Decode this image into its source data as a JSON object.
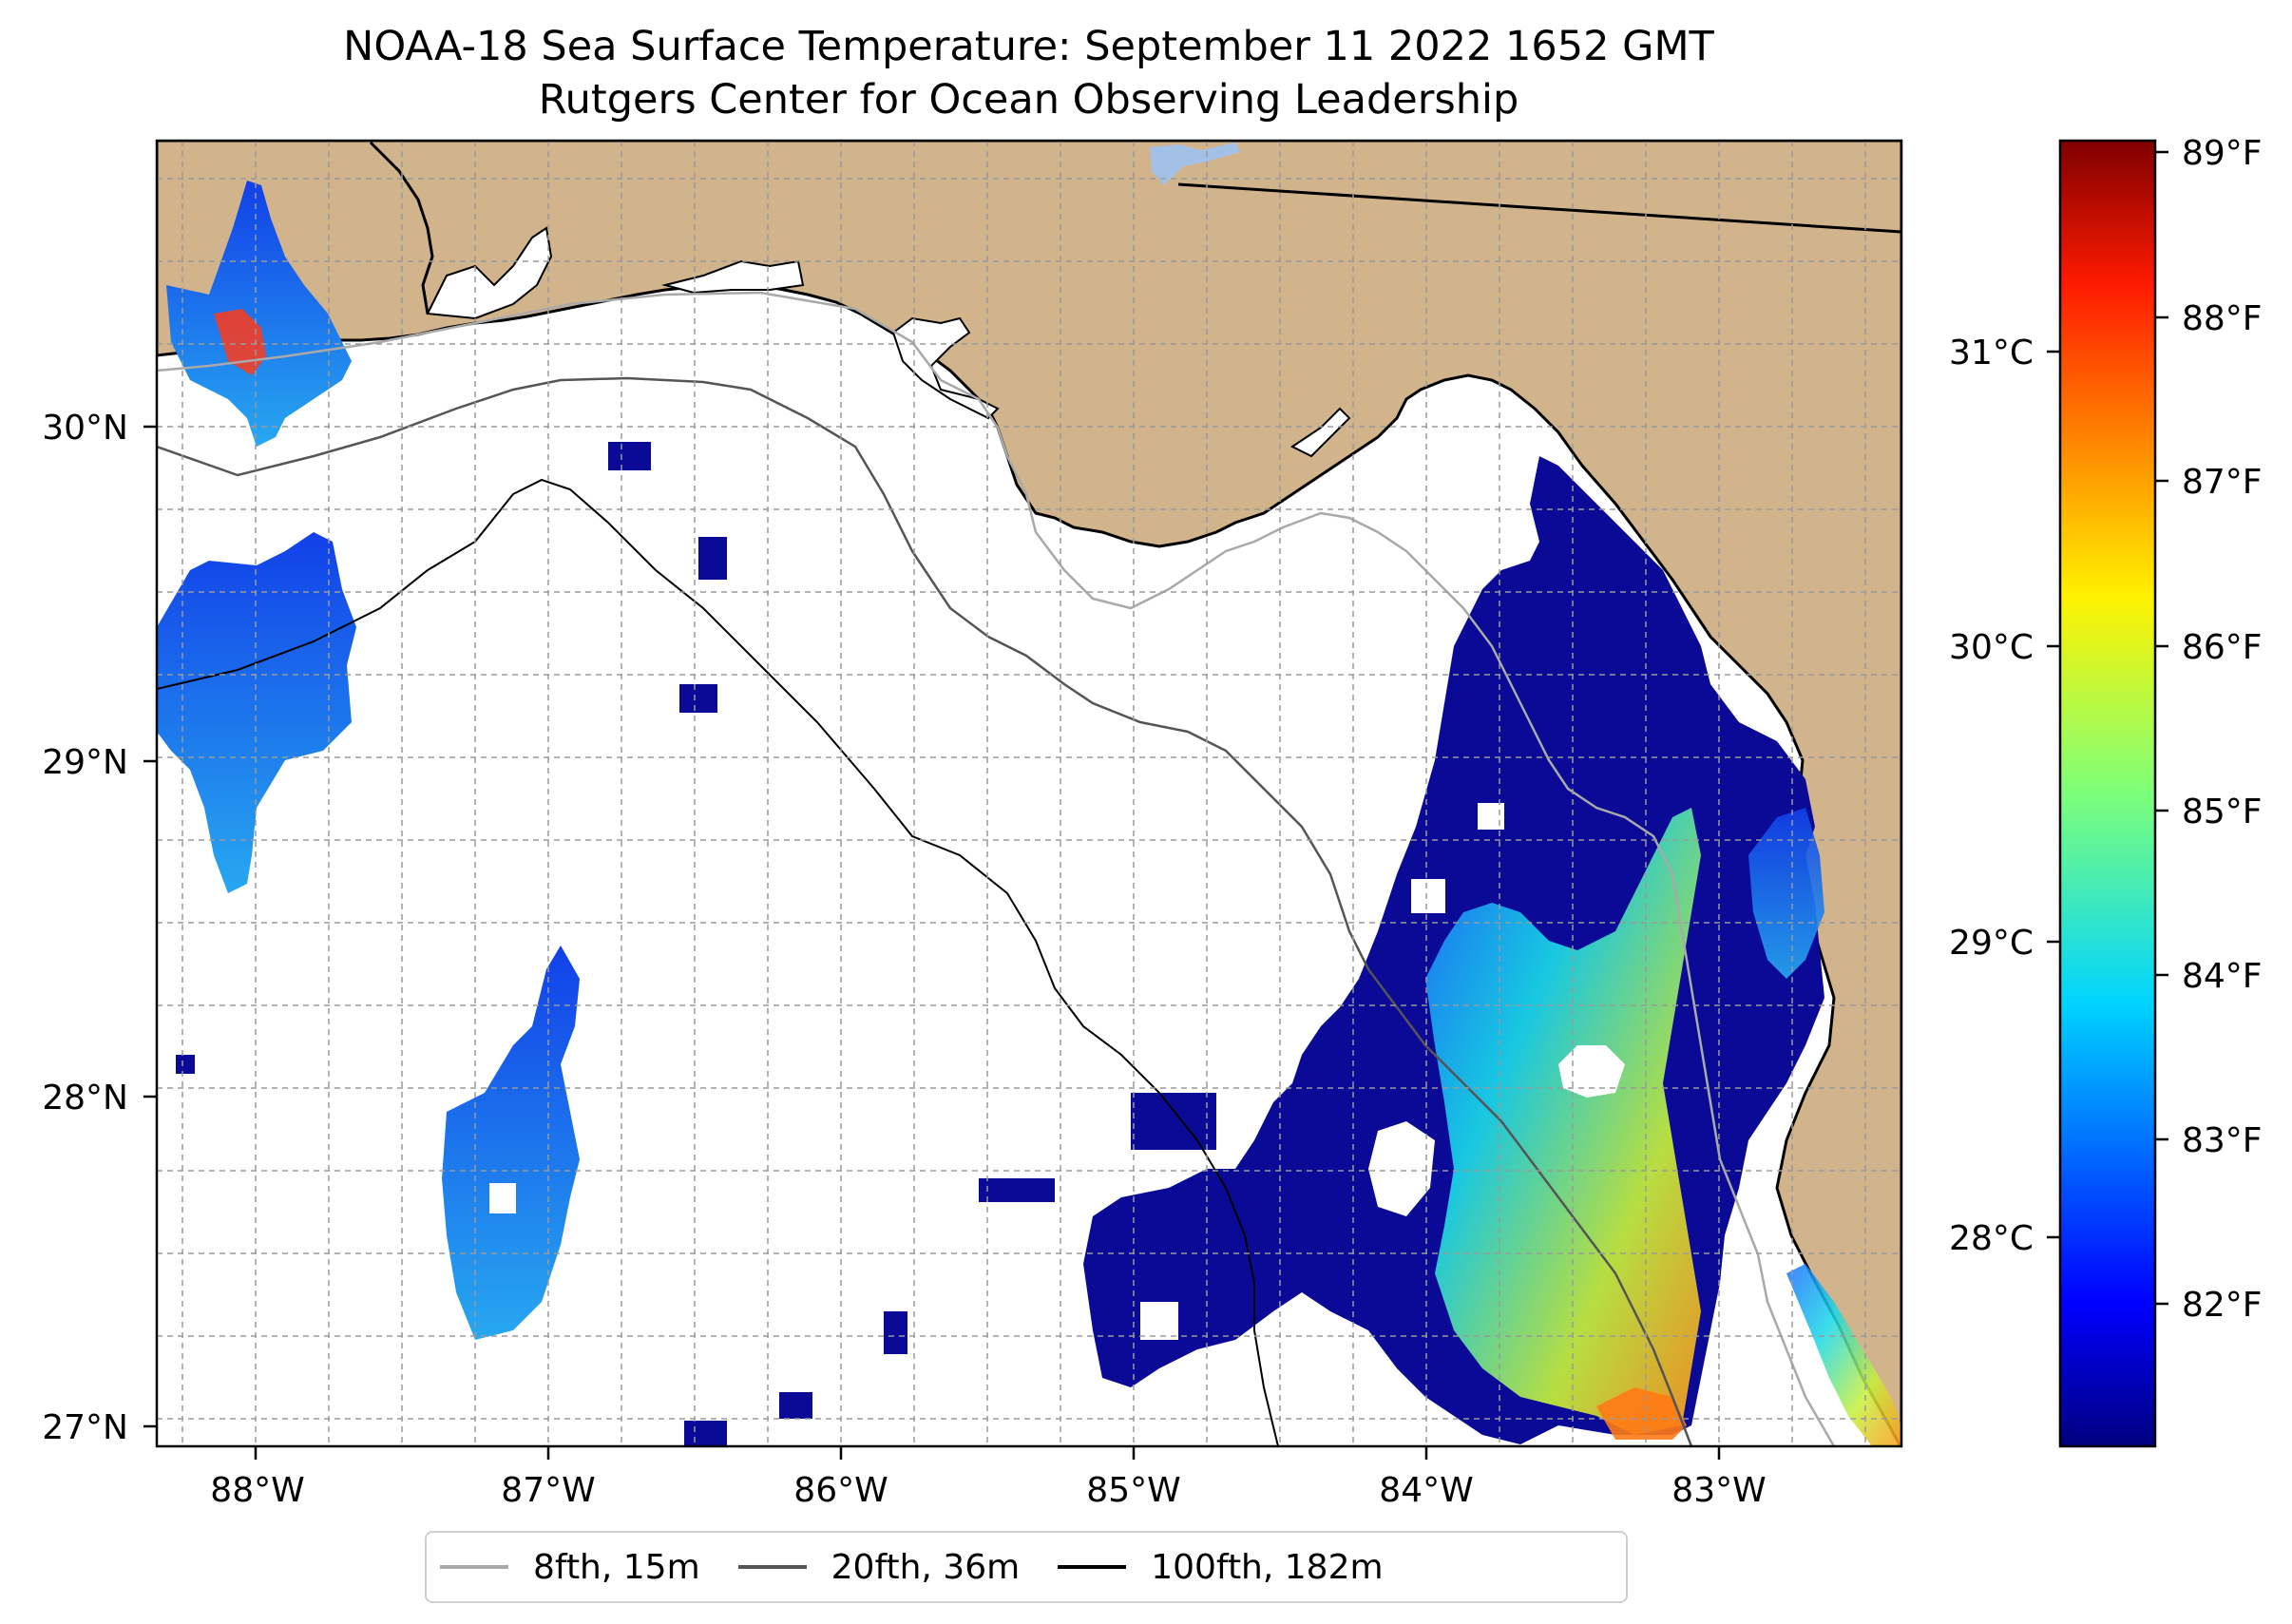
{
  "title": "NOAA-18 Sea Surface Temperature: September 11 2022 1652 GMT",
  "subtitle": "Rutgers Center for Ocean Observing Leadership",
  "map": {
    "lon_ticks": [
      "88°W",
      "87°W",
      "86°W",
      "85°W",
      "84°W",
      "83°W"
    ],
    "lat_ticks": [
      "30°N",
      "29°N",
      "28°N",
      "27°N"
    ],
    "lon_range": [
      -88.3,
      -82.35
    ],
    "lat_range": [
      26.93,
      30.85
    ],
    "land_color": "#d2b48c",
    "water_color": "#ffffff",
    "gridlines": true
  },
  "colorbar": {
    "colormap": "jet",
    "fahrenheit_ticks": [
      "89°F",
      "88°F",
      "87°F",
      "86°F",
      "85°F",
      "84°F",
      "83°F",
      "82°F"
    ],
    "celsius_ticks": [
      "31°C",
      "30°C",
      "29°C",
      "28°C"
    ]
  },
  "legend": [
    {
      "label": "8fth, 15m",
      "color": "#a9a9a9"
    },
    {
      "label": "20fth, 36m",
      "color": "#555555"
    },
    {
      "label": "100fth, 182m",
      "color": "#000000"
    }
  ]
}
